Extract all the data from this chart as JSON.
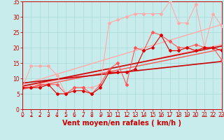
{
  "xlabel": "Vent moyen/en rafales ( km/h )",
  "bg_color": "#c8ecec",
  "grid_color": "#a8d8d8",
  "x_min": 0,
  "x_max": 23,
  "y_min": 0,
  "y_max": 35,
  "series": [
    {
      "name": "light_pink_scatter",
      "color": "#ffaaaa",
      "lw": 0.8,
      "marker": "D",
      "ms": 2.0,
      "x": [
        0,
        1,
        2,
        3,
        4,
        5,
        6,
        7,
        8,
        9,
        10,
        11,
        12,
        13,
        14,
        15,
        16,
        17,
        18,
        19,
        20,
        21,
        22,
        23
      ],
      "y": [
        7,
        14,
        14,
        14,
        11,
        5,
        7,
        7,
        7,
        8,
        28,
        29,
        30,
        31,
        31,
        31,
        31,
        35,
        28,
        28,
        34,
        20,
        31,
        27
      ]
    },
    {
      "name": "light_pink_regression_upper",
      "color": "#ffaaaa",
      "lw": 1.0,
      "marker": null,
      "x": [
        0,
        23
      ],
      "y": [
        8.0,
        27.5
      ]
    },
    {
      "name": "light_pink_regression_lower",
      "color": "#ffaaaa",
      "lw": 1.0,
      "marker": null,
      "x": [
        0,
        23
      ],
      "y": [
        7.0,
        21.0
      ]
    },
    {
      "name": "medium_red_scatter",
      "color": "#ff5555",
      "lw": 0.8,
      "marker": "D",
      "ms": 2.0,
      "x": [
        0,
        1,
        2,
        3,
        4,
        5,
        6,
        7,
        8,
        9,
        10,
        11,
        12,
        13,
        14,
        15,
        16,
        17,
        18,
        19,
        20,
        21,
        22,
        23
      ],
      "y": [
        7,
        7,
        8,
        8,
        8,
        5,
        7,
        7,
        5,
        8,
        13,
        15,
        8,
        20,
        19,
        25,
        24,
        22,
        20,
        20,
        21,
        20,
        20,
        16
      ]
    },
    {
      "name": "medium_red_regression",
      "color": "#ff5555",
      "lw": 1.0,
      "marker": null,
      "x": [
        0,
        23
      ],
      "y": [
        6.5,
        19.5
      ]
    },
    {
      "name": "dark_red_scatter",
      "color": "#dd0000",
      "lw": 0.8,
      "marker": "D",
      "ms": 2.0,
      "x": [
        0,
        1,
        2,
        3,
        4,
        5,
        6,
        7,
        8,
        9,
        10,
        11,
        12,
        13,
        14,
        15,
        16,
        17,
        18,
        19,
        20,
        21,
        22,
        23
      ],
      "y": [
        7,
        7,
        7,
        8,
        5,
        5,
        6,
        6,
        5,
        7,
        12,
        12,
        12,
        13,
        19,
        20,
        24,
        19,
        19,
        20,
        19,
        20,
        20,
        19
      ]
    },
    {
      "name": "dark_red_regression_upper",
      "color": "#cc0000",
      "lw": 1.2,
      "marker": null,
      "x": [
        0,
        23
      ],
      "y": [
        7.5,
        20.5
      ]
    },
    {
      "name": "dark_red_regression_lower",
      "color": "#cc0000",
      "lw": 1.2,
      "marker": null,
      "x": [
        0,
        23
      ],
      "y": [
        8.5,
        15.5
      ]
    }
  ],
  "axis_color": "#cc0000",
  "tick_fontsize": 5.5,
  "label_fontsize": 7
}
